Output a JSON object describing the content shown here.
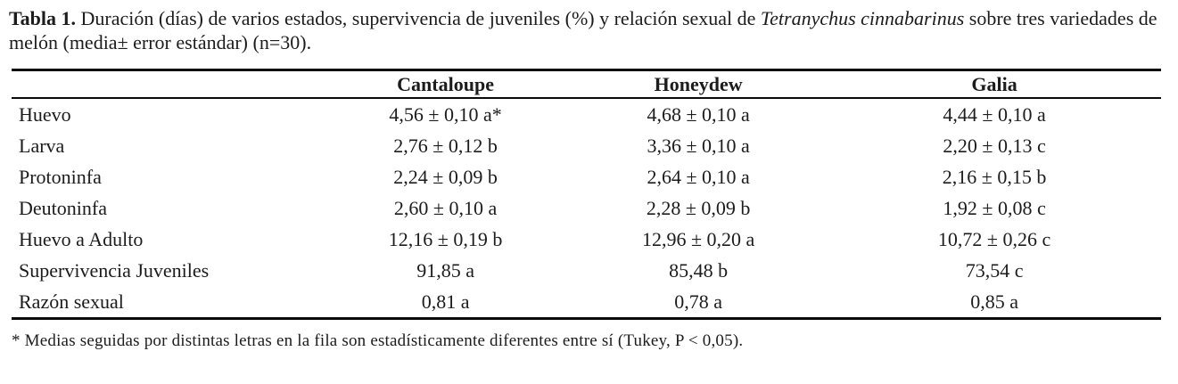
{
  "document": {
    "background_color": "#ffffff",
    "text_color": "#1c1c1c",
    "rule_color": "#0a0a0a"
  },
  "caption": {
    "label": "Tabla 1.",
    "text_before_italic": " Duración (días) de varios estados, supervivencia de juveniles (%) y relación sexual de ",
    "species_italic": "Tetranychus cinnabarinus",
    "text_after_italic": " sobre tres variedades de",
    "line2": "melón (media± error estándar) (n=30)."
  },
  "table": {
    "columns": [
      "",
      "Cantaloupe",
      "Honeydew",
      "Galia"
    ],
    "rows": [
      {
        "label": "Huevo",
        "values": [
          "4,56 ± 0,10 a*",
          "4,68 ± 0,10 a",
          "4,44 ± 0,10 a"
        ]
      },
      {
        "label": "Larva",
        "values": [
          "2,76 ± 0,12 b",
          "3,36 ± 0,10 a",
          "2,20 ± 0,13 c"
        ]
      },
      {
        "label": "Protoninfa",
        "values": [
          "2,24 ± 0,09 b",
          "2,64 ± 0,10 a",
          "2,16 ± 0,15 b"
        ]
      },
      {
        "label": "Deutoninfa",
        "values": [
          "2,60 ± 0,10 a",
          "2,28 ± 0,09 b",
          "1,92 ± 0,08 c"
        ]
      },
      {
        "label": "Huevo a Adulto",
        "values": [
          "12,16 ± 0,19 b",
          "12,96 ± 0,20 a",
          "10,72 ± 0,26 c"
        ]
      },
      {
        "label": "Supervivencia Juveniles",
        "values": [
          "91,85 a",
          "85,48 b",
          "73,54 c"
        ]
      },
      {
        "label": "Razón sexual",
        "values": [
          "0,81 a",
          "0,78 a",
          "0,85 a"
        ]
      }
    ]
  },
  "footnote": "* Medias seguidas por distintas letras en la fila son estadísticamente diferentes entre sí (Tukey, P < 0,05)."
}
